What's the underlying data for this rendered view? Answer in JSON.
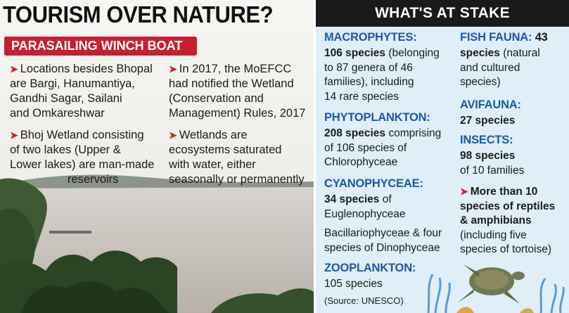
{
  "headline": "TOURISM OVER NATURE?",
  "subhead": "PARASAILING WINCH BOAT",
  "left_points": {
    "p1": [
      "Locations besides Bhopal",
      "are Bargi, Hanumantiya,",
      "Gandhi Sagar, Sailani",
      "and Omkareshwar"
    ],
    "p2": [
      "In 2017, the MoEFCC",
      "had notified the Wetland",
      "(Conservation and",
      "Management) Rules, 2017"
    ],
    "p3": [
      "Bhoj Wetland consisting",
      "of two lakes (Upper &",
      "Lower lakes) are man-made",
      "reservoirs"
    ],
    "p4": [
      "Wetlands are",
      "ecosystems saturated",
      "with water, either",
      "seasonally or permanently"
    ]
  },
  "right_header": "WHAT'S AT STAKE",
  "macrophytes": {
    "label": "MACROPHYTES:",
    "count": "106 species",
    "lines": [
      "(belonging",
      "to 87 genera of 46",
      "families), including",
      "14 rare species"
    ]
  },
  "phytoplankton": {
    "label": "PHYTOPLANKTON:",
    "count": "208 species",
    "lines": [
      "comprising",
      "of 106 species of",
      "Chlorophyceae"
    ]
  },
  "cyanophyceae": {
    "label": "CYANOPHYCEAE:",
    "count": "34 species",
    "lines": [
      "of",
      "Euglenophyceae",
      "Bacillariophyceae & four",
      "species of Dinophyceae"
    ]
  },
  "zooplankton": {
    "label": "ZOOPLANKTON:",
    "lines": [
      "105 species"
    ]
  },
  "source": "(Source: UNESCO)",
  "fish": {
    "label": "FISH FAUNA:",
    "count": "43",
    "lines": [
      "species",
      "(natural",
      "and cultured",
      "species)"
    ]
  },
  "avifauna": {
    "label": "AVIFAUNA:",
    "lines": [
      "27 species"
    ]
  },
  "insects": {
    "label": "INSECTS:",
    "lines": [
      "98 species",
      "of 10 families"
    ]
  },
  "reptiles": {
    "lines": [
      "More than 10",
      "species of reptiles",
      "& amphibians",
      "(including five",
      "species of tortoise)"
    ]
  },
  "colors": {
    "title_red": "#c4202f",
    "label_blue": "#1b5aa8",
    "header_black": "#1a1a1a",
    "panel_blue": "#dfeef7"
  }
}
